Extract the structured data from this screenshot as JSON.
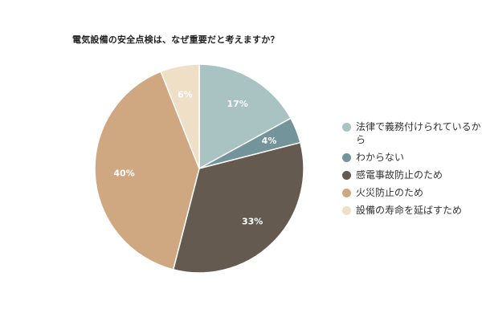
{
  "chart_data": {
    "type": "pie",
    "title": "電気設備の安全点検は、なぜ重要だと考えますか？",
    "categories": [
      "法律で義務付けられているから",
      "わからない",
      "感電事故防止のため",
      "火災防止のため",
      "設備の寿命を延ばすため"
    ],
    "values": [
      17,
      4,
      33,
      40,
      6
    ],
    "data_labels": [
      "17%",
      "4%",
      "33%",
      "40%",
      "6%"
    ],
    "colors": [
      "#a9c2c2",
      "#72949a",
      "#645a50",
      "#cfa882",
      "#eedfc6"
    ],
    "legend_position": "right"
  }
}
